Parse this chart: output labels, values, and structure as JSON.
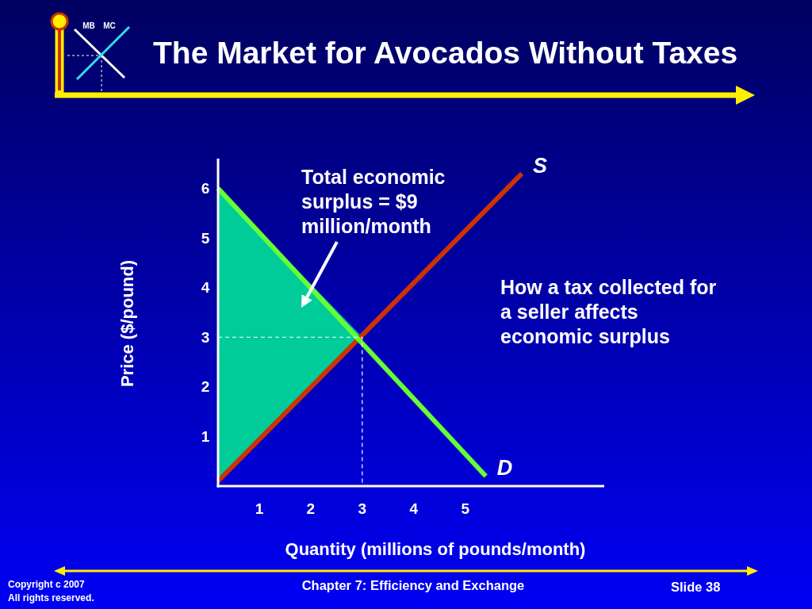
{
  "chart_data": {
    "type": "line",
    "title": "The Market for Avocados Without Taxes",
    "xlabel": "Quantity (millions of pounds/month)",
    "ylabel": "Price ($/pound)",
    "xlim": [
      0.2,
      7.7
    ],
    "xticks": [
      1,
      2,
      3,
      4,
      5
    ],
    "ylim": [
      0,
      6.6
    ],
    "yticks": [
      1,
      2,
      3,
      4,
      5,
      6
    ],
    "series": [
      {
        "type": "area",
        "color": "#00cc99",
        "x": [
          0.2,
          3
        ],
        "values": [
          null,
          null
        ],
        "lower": [
          0.1,
          3
        ],
        "upper": [
          6,
          3
        ]
      },
      {
        "name": "S",
        "color": "#cc3300",
        "x": [
          0.2,
          6.1
        ],
        "values": [
          0.1,
          6.3
        ]
      },
      {
        "name": "D",
        "color": "#66ff33",
        "x": [
          0.2,
          5.4
        ],
        "values": [
          6,
          0.2
        ]
      },
      {
        "color": "#ffffff",
        "line_style": "dashed",
        "x": [
          0.2,
          3,
          3
        ],
        "values": [
          3,
          3,
          0
        ]
      }
    ],
    "annotations": [
      "Total economic surplus = $9 million/month",
      "How a tax collected for a seller affects economic surplus",
      "MB",
      "MC",
      "Copyright c 2007",
      "All rights reserved.",
      "Chapter 7: Efficiency and Exchange",
      "Slide 38"
    ]
  }
}
